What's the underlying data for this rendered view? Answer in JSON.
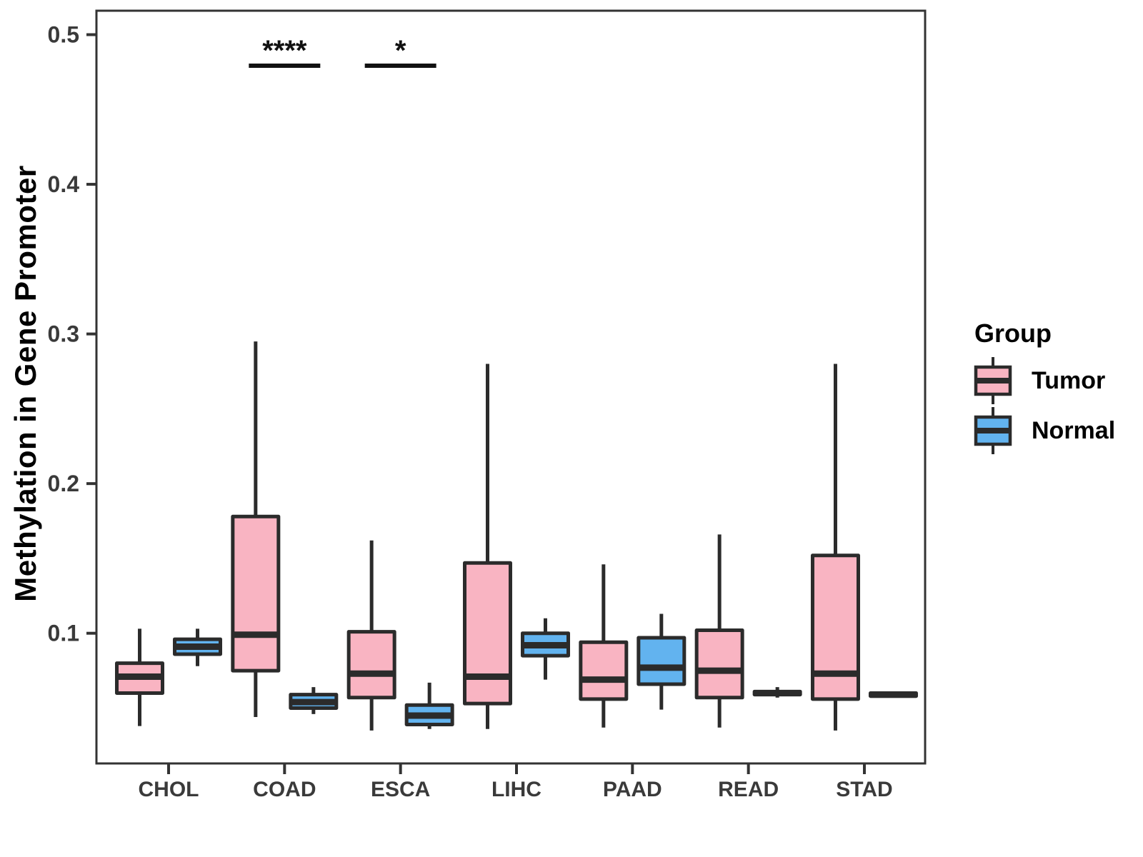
{
  "chart_data": {
    "type": "boxplot",
    "title": "",
    "xlabel": "",
    "ylabel": "Methylation in Gene Promoter",
    "categories": [
      "CHOL",
      "COAD",
      "ESCA",
      "LIHC",
      "PAAD",
      "READ",
      "STAD"
    ],
    "y_ticks": [
      0.5,
      0.4,
      0.3,
      0.2,
      0.1
    ],
    "ylim": [
      0.013,
      0.516
    ],
    "grid": false,
    "colors": {
      "tumor_fill": "#F9B4C2",
      "normal_fill": "#62B3EF",
      "stroke": "#2B2B2B",
      "axis": "#333333",
      "tick_text": "#3A3A3A"
    },
    "series": [
      {
        "name": "Tumor",
        "boxes": [
          {
            "category": "CHOL",
            "min": 0.038,
            "q1": 0.06,
            "median": 0.071,
            "q3": 0.08,
            "max": 0.103
          },
          {
            "category": "COAD",
            "min": 0.044,
            "q1": 0.075,
            "median": 0.099,
            "q3": 0.178,
            "max": 0.295
          },
          {
            "category": "ESCA",
            "min": 0.035,
            "q1": 0.057,
            "median": 0.073,
            "q3": 0.101,
            "max": 0.162
          },
          {
            "category": "LIHC",
            "min": 0.036,
            "q1": 0.053,
            "median": 0.071,
            "q3": 0.147,
            "max": 0.28
          },
          {
            "category": "PAAD",
            "min": 0.037,
            "q1": 0.056,
            "median": 0.069,
            "q3": 0.094,
            "max": 0.146
          },
          {
            "category": "READ",
            "min": 0.037,
            "q1": 0.057,
            "median": 0.075,
            "q3": 0.102,
            "max": 0.166
          },
          {
            "category": "STAD",
            "min": 0.035,
            "q1": 0.056,
            "median": 0.073,
            "q3": 0.152,
            "max": 0.28
          }
        ]
      },
      {
        "name": "Normal",
        "boxes": [
          {
            "category": "CHOL",
            "min": 0.078,
            "q1": 0.086,
            "median": 0.091,
            "q3": 0.096,
            "max": 0.103
          },
          {
            "category": "COAD",
            "min": 0.046,
            "q1": 0.05,
            "median": 0.054,
            "q3": 0.059,
            "max": 0.064
          },
          {
            "category": "ESCA",
            "min": 0.036,
            "q1": 0.039,
            "median": 0.045,
            "q3": 0.052,
            "max": 0.067
          },
          {
            "category": "LIHC",
            "min": 0.069,
            "q1": 0.085,
            "median": 0.092,
            "q3": 0.1,
            "max": 0.11
          },
          {
            "category": "PAAD",
            "min": 0.049,
            "q1": 0.066,
            "median": 0.077,
            "q3": 0.097,
            "max": 0.113
          },
          {
            "category": "READ",
            "min": 0.057,
            "q1": 0.059,
            "median": 0.06,
            "q3": 0.061,
            "max": 0.064
          },
          {
            "category": "STAD",
            "min": 0.058,
            "q1": 0.058,
            "median": 0.059,
            "q3": 0.06,
            "max": 0.06
          }
        ]
      }
    ],
    "annotations": [
      {
        "category": "COAD",
        "text": "****"
      },
      {
        "category": "ESCA",
        "text": "*"
      }
    ],
    "legend": {
      "title": "Group",
      "position": "right",
      "entries": [
        {
          "label": "Tumor"
        },
        {
          "label": "Normal"
        }
      ]
    }
  }
}
